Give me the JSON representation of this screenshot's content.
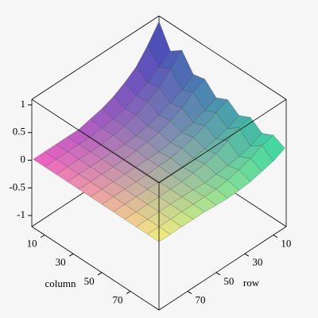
{
  "chart_data": {
    "type": "surface",
    "xlabel": "column",
    "ylabel": "row",
    "x": [
      1,
      9,
      17,
      25,
      33,
      41,
      49,
      57,
      65,
      73,
      81,
      89
    ],
    "y": [
      1,
      9,
      17,
      25,
      33,
      41,
      49,
      57,
      65,
      73,
      81,
      89
    ],
    "z": [
      [
        1.0,
        0.6,
        0.75,
        0.45,
        0.5,
        0.3,
        0.4,
        0.25,
        0.35,
        0.2,
        0.3,
        0.2
      ],
      [
        0.7,
        0.45,
        0.55,
        0.3,
        0.4,
        0.2,
        0.3,
        0.15,
        0.3,
        0.1,
        0.25,
        0.1
      ],
      [
        0.45,
        0.3,
        0.35,
        0.2,
        0.25,
        0.12,
        0.2,
        0.1,
        0.2,
        0.05,
        0.15,
        0.05
      ],
      [
        0.3,
        0.2,
        0.22,
        0.12,
        0.15,
        0.08,
        0.12,
        0.05,
        0.1,
        0.02,
        0.08,
        0.0
      ],
      [
        0.18,
        0.1,
        0.12,
        0.06,
        0.08,
        0.03,
        0.06,
        0.02,
        0.05,
        0.0,
        0.03,
        -0.02
      ],
      [
        0.1,
        0.05,
        0.06,
        0.02,
        0.04,
        0.0,
        0.02,
        0.0,
        0.02,
        -0.02,
        0.0,
        -0.03
      ],
      [
        0.05,
        0.02,
        0.03,
        0.0,
        0.02,
        0.0,
        0.01,
        0.0,
        0.0,
        -0.01,
        0.0,
        -0.02
      ],
      [
        0,
        0,
        0,
        0,
        0,
        0,
        0,
        0,
        0,
        0,
        0,
        0
      ],
      [
        0,
        0,
        0,
        0,
        0,
        0,
        0,
        0,
        0,
        0,
        0,
        0
      ],
      [
        0,
        0,
        0,
        0,
        0,
        0,
        0,
        0,
        0,
        0,
        0,
        0
      ],
      [
        0,
        0,
        0,
        0,
        0,
        0,
        0,
        0,
        0,
        0,
        0,
        0
      ],
      [
        0,
        0,
        0,
        0,
        0,
        0,
        0,
        0,
        0,
        0,
        0,
        0
      ]
    ],
    "xlim": [
      1,
      90
    ],
    "ylim": [
      1,
      90
    ],
    "zlim": [
      -1.2,
      1.1
    ],
    "xticks": [
      10,
      30,
      50,
      70
    ],
    "yticks": [
      10,
      30,
      50,
      70
    ],
    "zticks": [
      -1,
      -0.5,
      0,
      0.5,
      1
    ],
    "colors": {
      "left": "#f25fc4",
      "front": "#f8f07c",
      "right": "#3ee0a2",
      "back": "#4c4cc0"
    }
  }
}
